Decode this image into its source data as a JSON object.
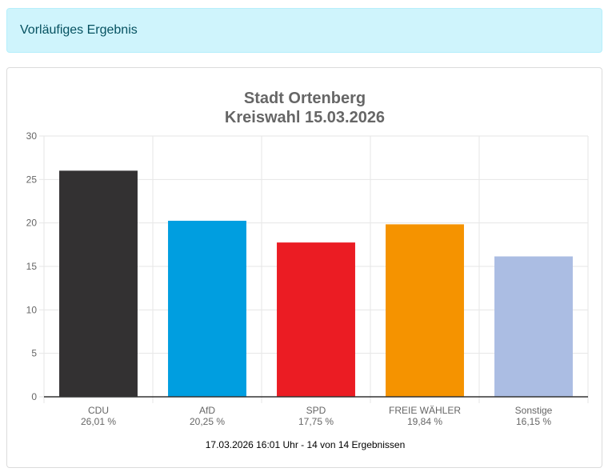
{
  "alert": {
    "text": "Vorläufiges Ergebnis"
  },
  "chart_data": {
    "type": "bar",
    "title_lines": [
      "Stadt Ortenberg",
      "Kreiswahl 15.03.2026"
    ],
    "categories": [
      "CDU",
      "AfD",
      "SPD",
      "FREIE WÄHLER",
      "Sonstige"
    ],
    "value_labels": [
      "26,01 %",
      "20,25 %",
      "17,75 %",
      "19,84 %",
      "16,15 %"
    ],
    "values": [
      26.01,
      20.25,
      17.75,
      19.84,
      16.15
    ],
    "colors": [
      "#333132",
      "#009ee0",
      "#eb1c23",
      "#f59300",
      "#abbde3"
    ],
    "ylim": [
      0,
      30
    ],
    "yticks": [
      "0",
      "5",
      "10",
      "15",
      "20",
      "25",
      "30"
    ],
    "grid": true,
    "legend": "none"
  },
  "footer": {
    "text": "17.03.2026 16:01 Uhr - 14 von 14 Ergebnissen"
  }
}
